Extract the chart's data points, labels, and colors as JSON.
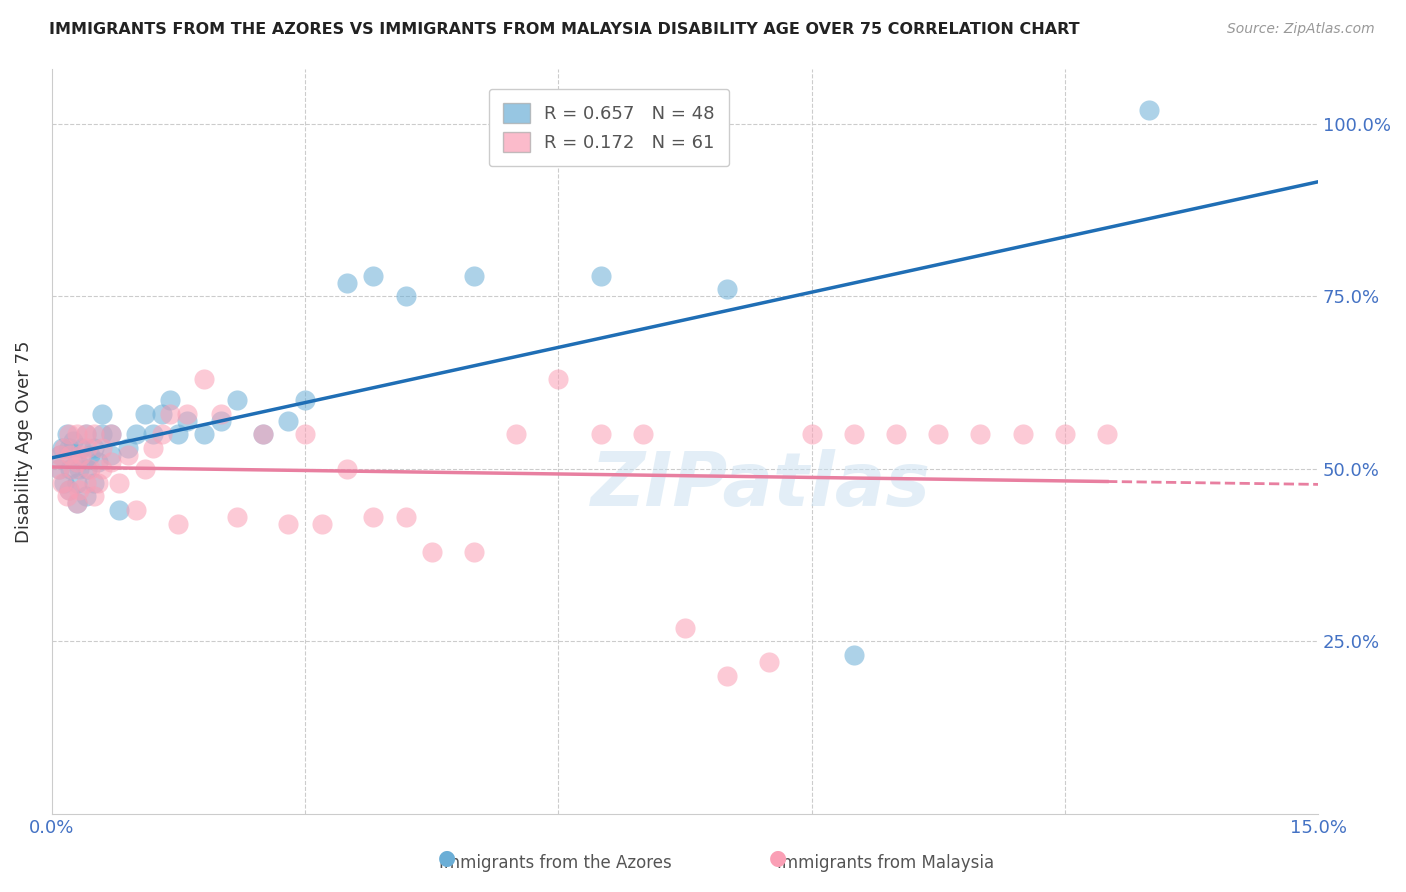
{
  "title": "IMMIGRANTS FROM THE AZORES VS IMMIGRANTS FROM MALAYSIA DISABILITY AGE OVER 75 CORRELATION CHART",
  "source": "Source: ZipAtlas.com",
  "ylabel": "Disability Age Over 75",
  "xmin": 0.0,
  "xmax": 0.15,
  "ymin": 0.0,
  "ymax": 1.08,
  "azores_color": "#6baed6",
  "malaysia_color": "#fa9fb5",
  "azores_line_color": "#1f6eb5",
  "malaysia_line_color": "#e87fa0",
  "R_azores": 0.657,
  "N_azores": 48,
  "R_malaysia": 0.172,
  "N_malaysia": 61,
  "watermark": "ZIPatlas",
  "legend_label_azores": "Immigrants from the Azores",
  "legend_label_malaysia": "Immigrants from Malaysia",
  "azores_x": [
    0.0008,
    0.001,
    0.0012,
    0.0015,
    0.0018,
    0.002,
    0.002,
    0.0022,
    0.0025,
    0.003,
    0.003,
    0.003,
    0.0032,
    0.0035,
    0.004,
    0.004,
    0.0042,
    0.0045,
    0.005,
    0.005,
    0.0055,
    0.006,
    0.006,
    0.007,
    0.007,
    0.008,
    0.009,
    0.01,
    0.011,
    0.012,
    0.013,
    0.014,
    0.015,
    0.016,
    0.018,
    0.02,
    0.022,
    0.025,
    0.028,
    0.03,
    0.035,
    0.038,
    0.042,
    0.05,
    0.065,
    0.08,
    0.095,
    0.13
  ],
  "azores_y": [
    0.5,
    0.52,
    0.53,
    0.48,
    0.55,
    0.47,
    0.53,
    0.5,
    0.54,
    0.45,
    0.48,
    0.51,
    0.5,
    0.53,
    0.46,
    0.55,
    0.5,
    0.52,
    0.48,
    0.53,
    0.51,
    0.58,
    0.55,
    0.52,
    0.55,
    0.44,
    0.53,
    0.55,
    0.58,
    0.55,
    0.58,
    0.6,
    0.55,
    0.57,
    0.55,
    0.57,
    0.6,
    0.55,
    0.57,
    0.6,
    0.77,
    0.78,
    0.75,
    0.78,
    0.78,
    0.76,
    0.23,
    1.02
  ],
  "malaysia_x": [
    0.0008,
    0.001,
    0.0012,
    0.0015,
    0.0018,
    0.002,
    0.002,
    0.0022,
    0.0025,
    0.003,
    0.003,
    0.003,
    0.0032,
    0.0035,
    0.004,
    0.004,
    0.0042,
    0.0045,
    0.005,
    0.005,
    0.0055,
    0.006,
    0.006,
    0.007,
    0.007,
    0.008,
    0.009,
    0.01,
    0.011,
    0.012,
    0.013,
    0.014,
    0.015,
    0.016,
    0.018,
    0.02,
    0.022,
    0.025,
    0.028,
    0.03,
    0.032,
    0.035,
    0.038,
    0.042,
    0.045,
    0.05,
    0.055,
    0.06,
    0.065,
    0.07,
    0.075,
    0.08,
    0.085,
    0.09,
    0.095,
    0.1,
    0.105,
    0.11,
    0.115,
    0.12,
    0.125
  ],
  "malaysia_y": [
    0.5,
    0.52,
    0.48,
    0.53,
    0.46,
    0.55,
    0.47,
    0.52,
    0.5,
    0.45,
    0.55,
    0.51,
    0.47,
    0.52,
    0.48,
    0.55,
    0.53,
    0.5,
    0.46,
    0.55,
    0.48,
    0.5,
    0.53,
    0.51,
    0.55,
    0.48,
    0.52,
    0.44,
    0.5,
    0.53,
    0.55,
    0.58,
    0.42,
    0.58,
    0.63,
    0.58,
    0.43,
    0.55,
    0.42,
    0.55,
    0.42,
    0.5,
    0.43,
    0.43,
    0.38,
    0.38,
    0.55,
    0.63,
    0.55,
    0.55,
    0.27,
    0.2,
    0.22,
    0.55,
    0.55,
    0.55,
    0.55,
    0.55,
    0.55,
    0.55,
    0.55
  ]
}
